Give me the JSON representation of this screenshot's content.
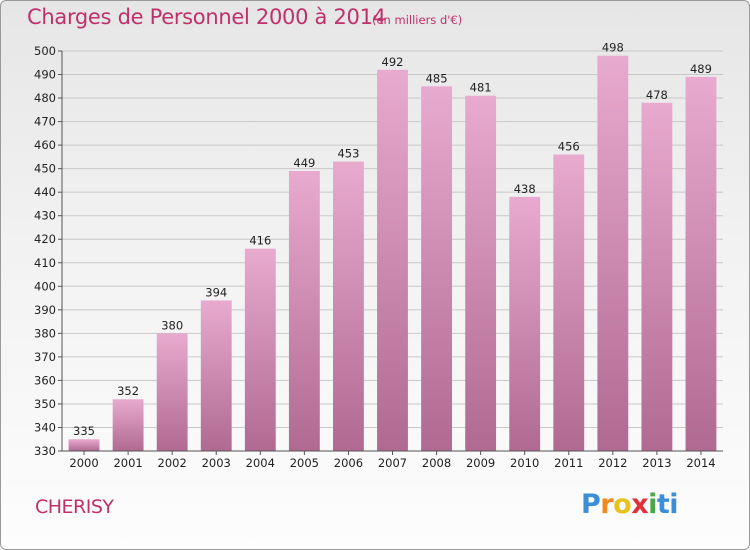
{
  "header": {
    "title": "Charges de Personnel 2000 à 2014",
    "subtitle": "(en milliers d'€)"
  },
  "footer": {
    "town": "CHERISY",
    "logo": "Proxiti"
  },
  "colors": {
    "accent": "#c0306a",
    "bar_top": "#e8aace",
    "bar_bottom": "#b06a92",
    "grid": "#c8c8c8"
  },
  "chart_data": {
    "type": "bar",
    "title": "Charges de Personnel 2000 à 2014",
    "subtitle": "(en milliers d'€)",
    "xlabel": "",
    "ylabel": "",
    "categories": [
      "2000",
      "2001",
      "2002",
      "2003",
      "2004",
      "2005",
      "2006",
      "2007",
      "2008",
      "2009",
      "2010",
      "2011",
      "2012",
      "2013",
      "2014"
    ],
    "values": [
      335,
      352,
      380,
      394,
      416,
      449,
      453,
      492,
      485,
      481,
      438,
      456,
      498,
      478,
      489
    ],
    "ylim": [
      330,
      500
    ],
    "yticks": [
      330,
      340,
      350,
      360,
      370,
      380,
      390,
      400,
      410,
      420,
      430,
      440,
      450,
      460,
      470,
      480,
      490,
      500
    ],
    "grid": true,
    "legend": "none"
  }
}
